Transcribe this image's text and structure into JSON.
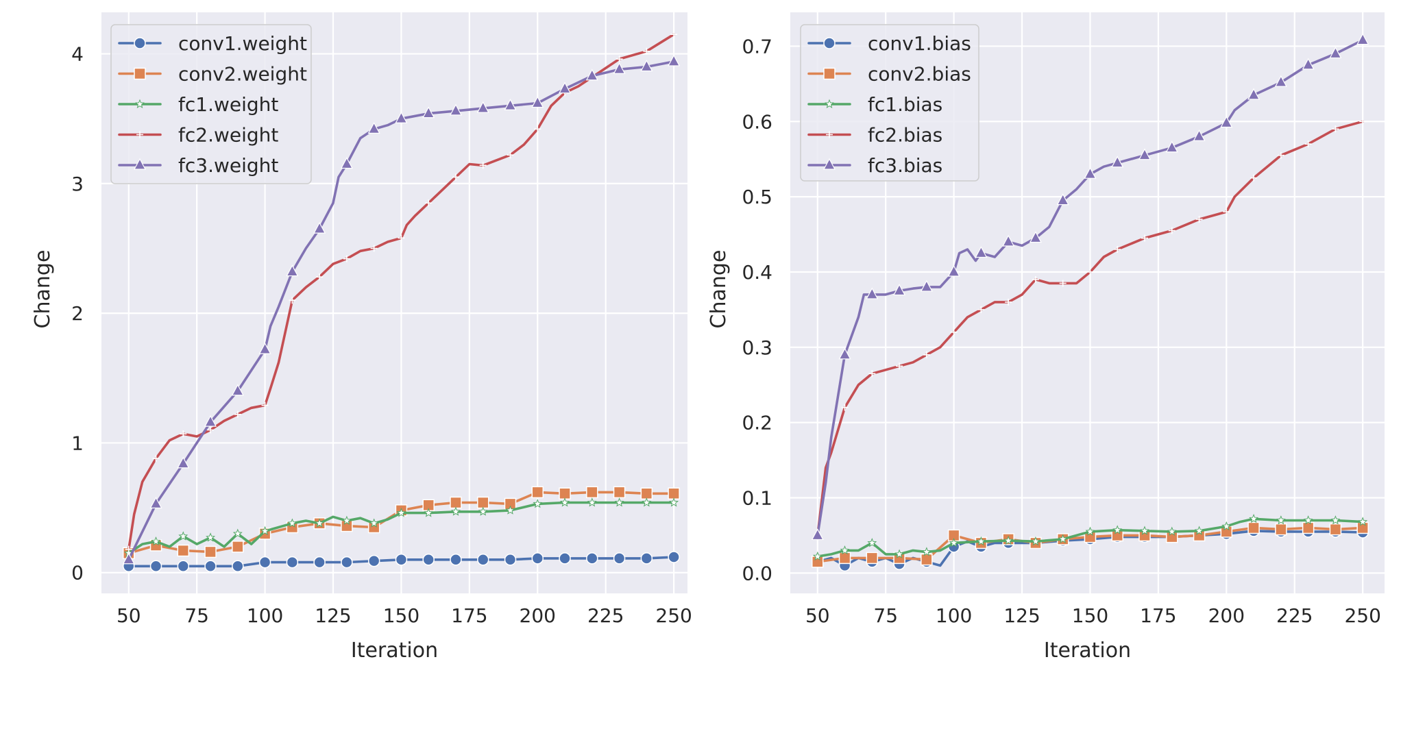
{
  "chart_data": [
    {
      "type": "line",
      "xlabel": "Iteration",
      "ylabel": "Change",
      "xlim": [
        40,
        255
      ],
      "ylim": [
        -0.16,
        4.32
      ],
      "xticks": [
        50,
        75,
        100,
        125,
        150,
        175,
        200,
        225,
        250
      ],
      "yticks": [
        0,
        1,
        2,
        3,
        4
      ],
      "ytick_labels": [
        "0",
        "1",
        "2",
        "3",
        "4"
      ],
      "legend_position": "top-left",
      "grid": true,
      "series": [
        {
          "name": "conv1.weight",
          "color": "#4c72b0",
          "marker": "circle",
          "x": [
            50,
            60,
            70,
            80,
            90,
            100,
            110,
            120,
            130,
            140,
            150,
            160,
            170,
            180,
            190,
            200,
            210,
            220,
            230,
            240,
            250
          ],
          "y": [
            0.05,
            0.05,
            0.05,
            0.05,
            0.05,
            0.08,
            0.08,
            0.08,
            0.08,
            0.09,
            0.1,
            0.1,
            0.1,
            0.1,
            0.1,
            0.11,
            0.11,
            0.11,
            0.11,
            0.11,
            0.12
          ]
        },
        {
          "name": "conv2.weight",
          "color": "#dd8452",
          "marker": "square",
          "x": [
            50,
            60,
            70,
            80,
            90,
            100,
            110,
            120,
            130,
            140,
            150,
            160,
            170,
            180,
            190,
            200,
            210,
            220,
            230,
            240,
            250
          ],
          "y": [
            0.15,
            0.21,
            0.17,
            0.16,
            0.2,
            0.3,
            0.35,
            0.38,
            0.36,
            0.35,
            0.48,
            0.52,
            0.54,
            0.54,
            0.53,
            0.62,
            0.61,
            0.62,
            0.62,
            0.61,
            0.61
          ]
        },
        {
          "name": "fc1.weight",
          "color": "#55a868",
          "marker": "star",
          "x": [
            50,
            55,
            60,
            65,
            70,
            75,
            80,
            85,
            90,
            95,
            100,
            105,
            110,
            115,
            120,
            125,
            130,
            135,
            140,
            145,
            150,
            160,
            170,
            180,
            190,
            200,
            210,
            220,
            230,
            240,
            250
          ],
          "y": [
            0.15,
            0.22,
            0.24,
            0.2,
            0.28,
            0.22,
            0.27,
            0.2,
            0.3,
            0.22,
            0.32,
            0.35,
            0.38,
            0.4,
            0.38,
            0.43,
            0.4,
            0.42,
            0.38,
            0.41,
            0.46,
            0.46,
            0.47,
            0.47,
            0.48,
            0.53,
            0.54,
            0.54,
            0.54,
            0.54,
            0.54
          ]
        },
        {
          "name": "fc2.weight",
          "color": "#c44e52",
          "marker": "plus",
          "x": [
            50,
            52,
            55,
            60,
            65,
            70,
            75,
            80,
            85,
            90,
            95,
            100,
            102,
            105,
            110,
            115,
            120,
            125,
            130,
            135,
            140,
            145,
            150,
            152,
            155,
            160,
            170,
            175,
            180,
            190,
            195,
            200,
            205,
            210,
            215,
            220,
            230,
            240,
            250
          ],
          "y": [
            0.18,
            0.45,
            0.7,
            0.88,
            1.02,
            1.07,
            1.05,
            1.1,
            1.17,
            1.22,
            1.27,
            1.29,
            1.42,
            1.62,
            2.1,
            2.2,
            2.28,
            2.38,
            2.42,
            2.48,
            2.5,
            2.55,
            2.58,
            2.68,
            2.75,
            2.85,
            3.05,
            3.15,
            3.14,
            3.22,
            3.3,
            3.42,
            3.6,
            3.7,
            3.75,
            3.82,
            3.96,
            4.02,
            4.15
          ]
        },
        {
          "name": "fc3.weight",
          "color": "#8172b3",
          "marker": "triangle",
          "x": [
            50,
            60,
            70,
            75,
            80,
            90,
            100,
            102,
            105,
            110,
            115,
            120,
            125,
            127,
            130,
            135,
            140,
            145,
            150,
            160,
            170,
            180,
            190,
            200,
            210,
            220,
            230,
            240,
            250
          ],
          "y": [
            0.1,
            0.53,
            0.84,
            1.0,
            1.16,
            1.4,
            1.72,
            1.9,
            2.05,
            2.32,
            2.5,
            2.65,
            2.85,
            3.05,
            3.15,
            3.35,
            3.42,
            3.45,
            3.5,
            3.54,
            3.56,
            3.58,
            3.6,
            3.62,
            3.73,
            3.83,
            3.88,
            3.9,
            3.94
          ]
        }
      ]
    },
    {
      "type": "line",
      "xlabel": "Iteration",
      "ylabel": "Change",
      "xlim": [
        40,
        258
      ],
      "ylim": [
        -0.027,
        0.745
      ],
      "xticks": [
        50,
        75,
        100,
        125,
        150,
        175,
        200,
        225,
        250
      ],
      "yticks": [
        0,
        0.1,
        0.2,
        0.3,
        0.4,
        0.5,
        0.6,
        0.7
      ],
      "ytick_labels": [
        "0.0",
        "0.1",
        "0.2",
        "0.3",
        "0.4",
        "0.5",
        "0.6",
        "0.7"
      ],
      "legend_position": "top-left",
      "grid": true,
      "series": [
        {
          "name": "conv1.bias",
          "color": "#4c72b0",
          "marker": "circle",
          "x": [
            50,
            55,
            60,
            65,
            70,
            75,
            80,
            85,
            90,
            95,
            100,
            105,
            110,
            115,
            120,
            130,
            140,
            150,
            160,
            170,
            180,
            190,
            200,
            210,
            220,
            230,
            240,
            250
          ],
          "y": [
            0.015,
            0.02,
            0.01,
            0.02,
            0.015,
            0.02,
            0.012,
            0.02,
            0.015,
            0.01,
            0.035,
            0.042,
            0.035,
            0.04,
            0.04,
            0.04,
            0.043,
            0.045,
            0.048,
            0.048,
            0.048,
            0.05,
            0.052,
            0.056,
            0.055,
            0.055,
            0.055,
            0.054
          ]
        },
        {
          "name": "conv2.bias",
          "color": "#dd8452",
          "marker": "square",
          "x": [
            50,
            60,
            70,
            80,
            90,
            100,
            110,
            120,
            130,
            140,
            150,
            160,
            170,
            180,
            190,
            200,
            210,
            220,
            230,
            240,
            250
          ],
          "y": [
            0.015,
            0.02,
            0.02,
            0.02,
            0.018,
            0.05,
            0.04,
            0.045,
            0.04,
            0.045,
            0.048,
            0.05,
            0.05,
            0.048,
            0.05,
            0.055,
            0.06,
            0.058,
            0.06,
            0.058,
            0.06
          ]
        },
        {
          "name": "fc1.bias",
          "color": "#55a868",
          "marker": "star",
          "x": [
            50,
            55,
            60,
            65,
            70,
            75,
            80,
            85,
            90,
            95,
            100,
            110,
            120,
            130,
            140,
            150,
            160,
            170,
            180,
            190,
            200,
            205,
            210,
            220,
            230,
            240,
            250
          ],
          "y": [
            0.022,
            0.025,
            0.03,
            0.03,
            0.04,
            0.025,
            0.025,
            0.03,
            0.028,
            0.03,
            0.04,
            0.042,
            0.043,
            0.042,
            0.045,
            0.055,
            0.057,
            0.056,
            0.055,
            0.056,
            0.062,
            0.068,
            0.072,
            0.07,
            0.07,
            0.07,
            0.068
          ]
        },
        {
          "name": "fc2.bias",
          "color": "#c44e52",
          "marker": "plus",
          "x": [
            50,
            53,
            55,
            60,
            65,
            70,
            75,
            80,
            85,
            90,
            95,
            100,
            105,
            110,
            115,
            120,
            125,
            130,
            135,
            140,
            145,
            150,
            155,
            160,
            170,
            180,
            190,
            200,
            203,
            210,
            220,
            230,
            240,
            250
          ],
          "y": [
            0.05,
            0.14,
            0.16,
            0.22,
            0.25,
            0.265,
            0.27,
            0.275,
            0.28,
            0.29,
            0.3,
            0.32,
            0.34,
            0.35,
            0.36,
            0.36,
            0.37,
            0.39,
            0.385,
            0.385,
            0.385,
            0.4,
            0.42,
            0.43,
            0.445,
            0.455,
            0.47,
            0.48,
            0.5,
            0.525,
            0.555,
            0.57,
            0.59,
            0.6
          ]
        },
        {
          "name": "fc3.bias",
          "color": "#8172b3",
          "marker": "triangle",
          "x": [
            50,
            53,
            55,
            60,
            65,
            67,
            70,
            75,
            80,
            85,
            90,
            95,
            100,
            102,
            105,
            108,
            110,
            115,
            120,
            125,
            130,
            135,
            140,
            145,
            150,
            155,
            160,
            170,
            180,
            190,
            200,
            203,
            210,
            220,
            230,
            240,
            250
          ],
          "y": [
            0.05,
            0.12,
            0.18,
            0.29,
            0.34,
            0.37,
            0.37,
            0.37,
            0.375,
            0.378,
            0.38,
            0.38,
            0.4,
            0.425,
            0.43,
            0.415,
            0.425,
            0.42,
            0.44,
            0.435,
            0.445,
            0.46,
            0.495,
            0.51,
            0.53,
            0.54,
            0.545,
            0.555,
            0.565,
            0.58,
            0.598,
            0.615,
            0.635,
            0.652,
            0.675,
            0.69,
            0.708
          ]
        }
      ]
    }
  ]
}
